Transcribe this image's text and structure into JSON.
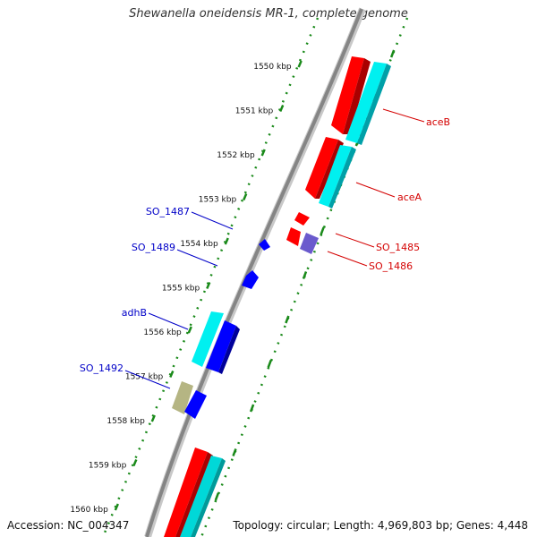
{
  "title": "Shewanella oneidensis MR-1, complete genome",
  "accession": "Accession: NC_004347",
  "summary": "Topology: circular; Length: 4,969,803 bp; Genes: 4,448",
  "colors": {
    "backbone": "#8a8a8a",
    "ruler": "#1a8a1a",
    "forward_strand": "#ff0000",
    "cds": "#00e5ee",
    "reverse_strand": "#0000ff",
    "pseudo": "#9a9a5a",
    "other": "#6a5acd",
    "label_forward": "#d40000",
    "label_reverse": "#0000c8"
  },
  "ruler": {
    "ticks": [
      "1550 kbp",
      "1551 kbp",
      "1552 kbp",
      "1553 kbp",
      "1554 kbp",
      "1555 kbp",
      "1556 kbp",
      "1557 kbp",
      "1558 kbp",
      "1559 kbp",
      "1560 kbp"
    ]
  },
  "genes": {
    "forward": [
      {
        "label": "aceB"
      },
      {
        "label": "aceA"
      },
      {
        "label": "SO_1485"
      },
      {
        "label": "SO_1486"
      }
    ],
    "reverse": [
      {
        "label": "SO_1487"
      },
      {
        "label": "SO_1489"
      },
      {
        "label": "adhB"
      },
      {
        "label": "SO_1492"
      }
    ]
  }
}
